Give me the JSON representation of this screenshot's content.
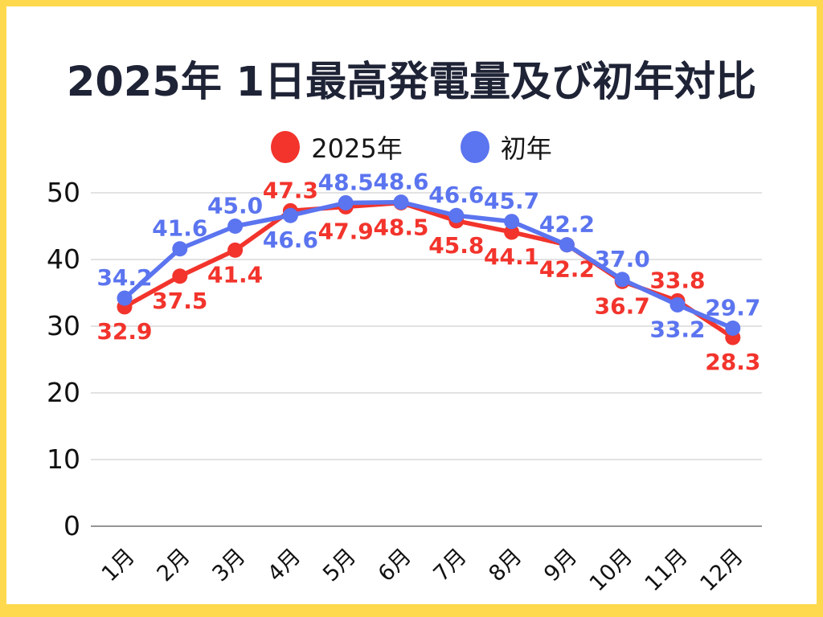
{
  "title": "2025年 1日最高発電量及び初年対比",
  "legend": {
    "items": [
      {
        "label": "2025年",
        "color": "#F2342C"
      },
      {
        "label": "初年",
        "color": "#5B74EF"
      }
    ]
  },
  "colors": {
    "border": "#FFD94D",
    "background": "#FFFFFF",
    "title": "#1F2336",
    "gridline": "#D8D8D8",
    "axis_line": "#969696",
    "tick_text": "#111111"
  },
  "chart_data": {
    "type": "line",
    "title": "2025年 1日最高発電量及び初年対比",
    "categories": [
      "1月",
      "2月",
      "3月",
      "4月",
      "5月",
      "6月",
      "7月",
      "8月",
      "9月",
      "10月",
      "11月",
      "12月"
    ],
    "series": [
      {
        "name": "2025年",
        "color": "#F2342C",
        "values": [
          32.9,
          37.5,
          41.4,
          47.3,
          47.9,
          48.5,
          45.8,
          44.1,
          42.2,
          36.7,
          33.8,
          28.3
        ],
        "label_positions": [
          "below",
          "below",
          "below",
          "above",
          "below",
          "below",
          "below",
          "below",
          "below",
          "below",
          "above",
          "below"
        ]
      },
      {
        "name": "初年",
        "color": "#5B74EF",
        "values": [
          34.2,
          41.6,
          45.0,
          46.6,
          48.5,
          48.6,
          46.6,
          45.7,
          42.2,
          37.0,
          33.2,
          29.7
        ],
        "label_positions": [
          "above",
          "above",
          "above",
          "below",
          "above",
          "above",
          "above",
          "above",
          "above",
          "above",
          "below",
          "above"
        ]
      }
    ],
    "xlabel": "",
    "ylabel": "",
    "ylim": [
      0,
      50
    ],
    "yticks": [
      0,
      10,
      20,
      30,
      40,
      50
    ],
    "grid": true,
    "legend_position": "top",
    "value_decimals": 1
  }
}
